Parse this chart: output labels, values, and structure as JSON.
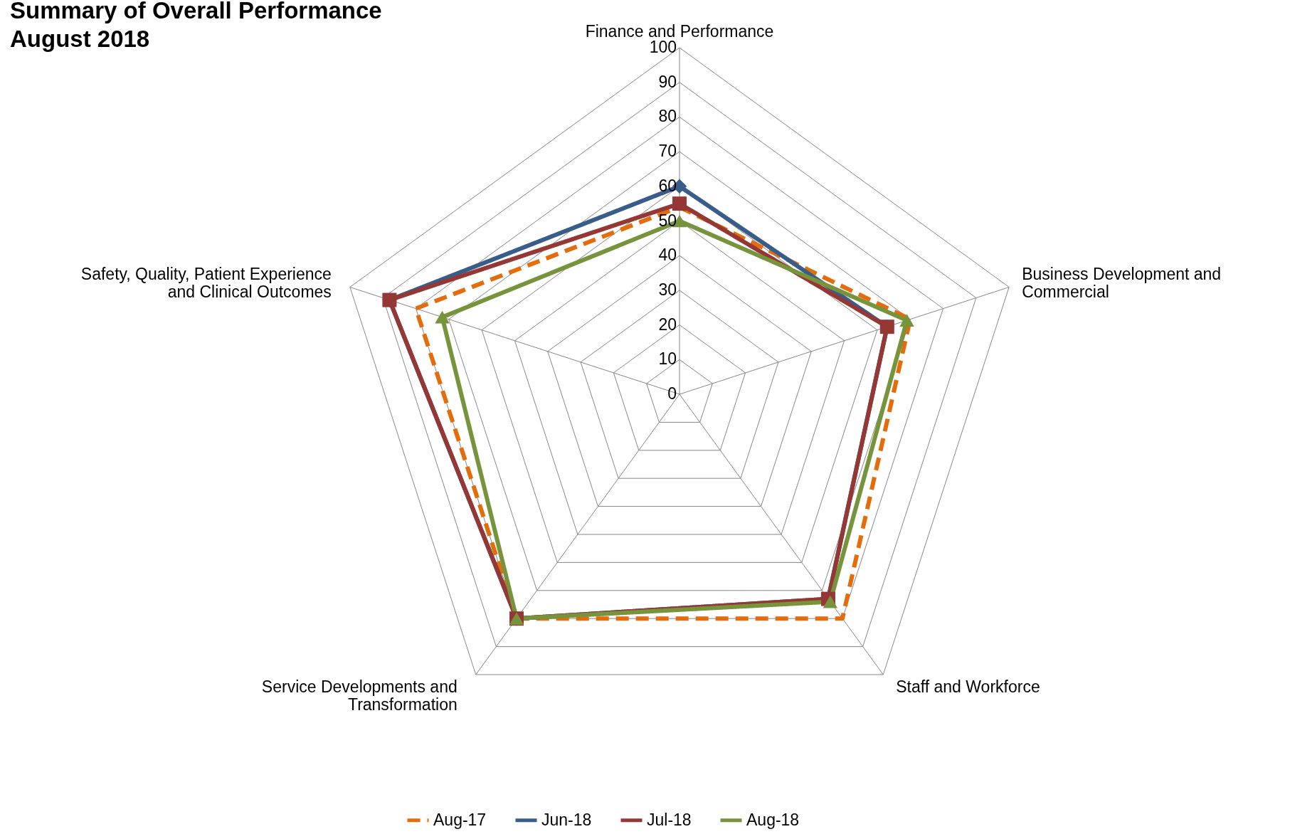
{
  "chart_data": {
    "type": "radar",
    "title": "Summary of Overall Performance",
    "subtitle": "August 2018",
    "categories": [
      "Finance and Performance",
      "Business Development and\nCommercial",
      "Staff and Workforce",
      "Service Developments and\nTransformation",
      "Safety, Quality, Patient Experience\nand Clinical Outcomes"
    ],
    "series": [
      {
        "name": "Aug-17",
        "color": "#e46c0a",
        "line_style": "dashed",
        "marker": "none",
        "values": [
          54,
          70,
          80,
          80,
          80
        ]
      },
      {
        "name": "Jun-18",
        "color": "#385d8a",
        "line_style": "solid",
        "marker": "diamond",
        "values": [
          60,
          63,
          73,
          80,
          88
        ]
      },
      {
        "name": "Jul-18",
        "color": "#953735",
        "line_style": "solid",
        "marker": "square",
        "values": [
          55,
          63,
          73,
          80,
          88
        ]
      },
      {
        "name": "Aug-18",
        "color": "#77933c",
        "line_style": "solid",
        "marker": "triangle",
        "values": [
          50,
          69,
          74,
          80,
          72
        ]
      }
    ],
    "ylim": [
      0,
      100
    ],
    "yticks": [
      0,
      10,
      20,
      30,
      40,
      50,
      60,
      70,
      80,
      90,
      100
    ],
    "grid": true,
    "legend": "bottom"
  }
}
